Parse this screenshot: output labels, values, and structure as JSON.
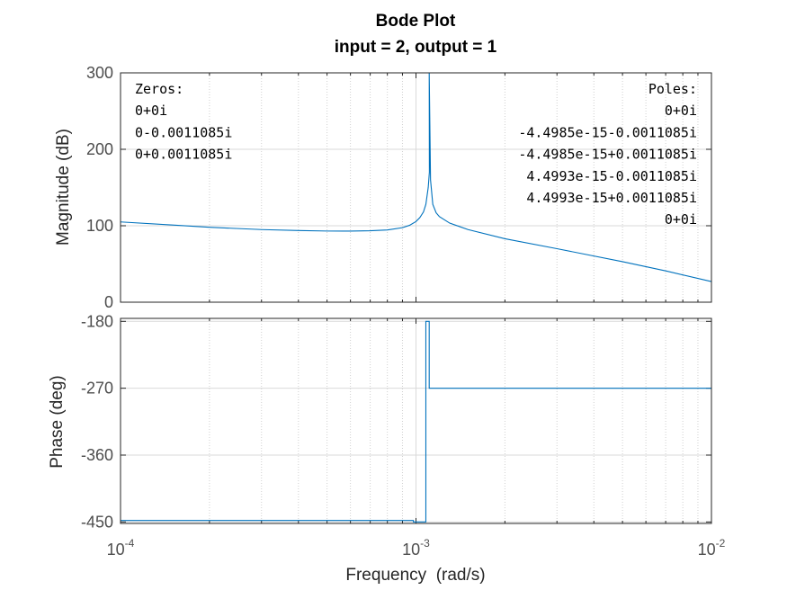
{
  "chart_data": [
    {
      "type": "line",
      "title": "Bode Plot",
      "subtitle": "input = 2, output = 1",
      "ylabel": "Magnitude (dB)",
      "xscale": "log",
      "xlim": [
        0.0001,
        0.01
      ],
      "ylim": [
        0,
        300
      ],
      "yticks": [
        "0",
        "100",
        "200",
        "300"
      ],
      "grid": true,
      "series_color": "#0072BD",
      "series": [
        {
          "x": [
            0.0001,
            0.00015,
            0.0002,
            0.0003,
            0.0004,
            0.0005,
            0.0006,
            0.0007,
            0.0008,
            0.0009,
            0.00095,
            0.001,
            0.00103,
            0.00106,
            0.00108,
            0.0011,
            0.00111,
            0.0011085,
            0.00112,
            0.00114,
            0.00117,
            0.0012,
            0.0013,
            0.0015,
            0.002,
            0.003,
            0.005,
            0.007,
            0.01
          ],
          "y": [
            105,
            101,
            98,
            95,
            93.7,
            93.1,
            93.0,
            93.4,
            94.5,
            97.5,
            100.5,
            105.5,
            110.5,
            118,
            128,
            150,
            170,
            300,
            160,
            128,
            117,
            112,
            103.5,
            95,
            83,
            70,
            53,
            41,
            27
          ]
        }
      ],
      "annotations": {
        "zeros": [
          "Zeros:",
          "0+0i",
          "0-0.0011085i",
          "0+0.0011085i"
        ],
        "poles": [
          "Poles:",
          "0+0i",
          "-4.4985e-15-0.0011085i",
          "-4.4985e-15+0.0011085i",
          "4.4993e-15-0.0011085i",
          "4.4993e-15+0.0011085i",
          "0+0i"
        ]
      }
    },
    {
      "type": "line",
      "ylabel": "Phase (deg)",
      "xlabel": "Frequency  (rad/s)",
      "xscale": "log",
      "xlim": [
        0.0001,
        0.01
      ],
      "ylim": [
        -452,
        -176
      ],
      "yticks": [
        "-450",
        "-360",
        "-270",
        "-180"
      ],
      "xticks": [
        {
          "base": "10",
          "exp": "-4"
        },
        {
          "base": "10",
          "exp": "-3"
        },
        {
          "base": "10",
          "exp": "-2"
        }
      ],
      "grid": true,
      "series_color": "#0072BD",
      "series": [
        {
          "x": [
            0.0001,
            0.00098,
            0.00098,
            0.00108,
            0.00108,
            0.0011085,
            0.0011085,
            0.01
          ],
          "y": [
            -448,
            -448,
            -450,
            -450,
            -180,
            -180,
            -270,
            -270
          ]
        }
      ]
    }
  ]
}
